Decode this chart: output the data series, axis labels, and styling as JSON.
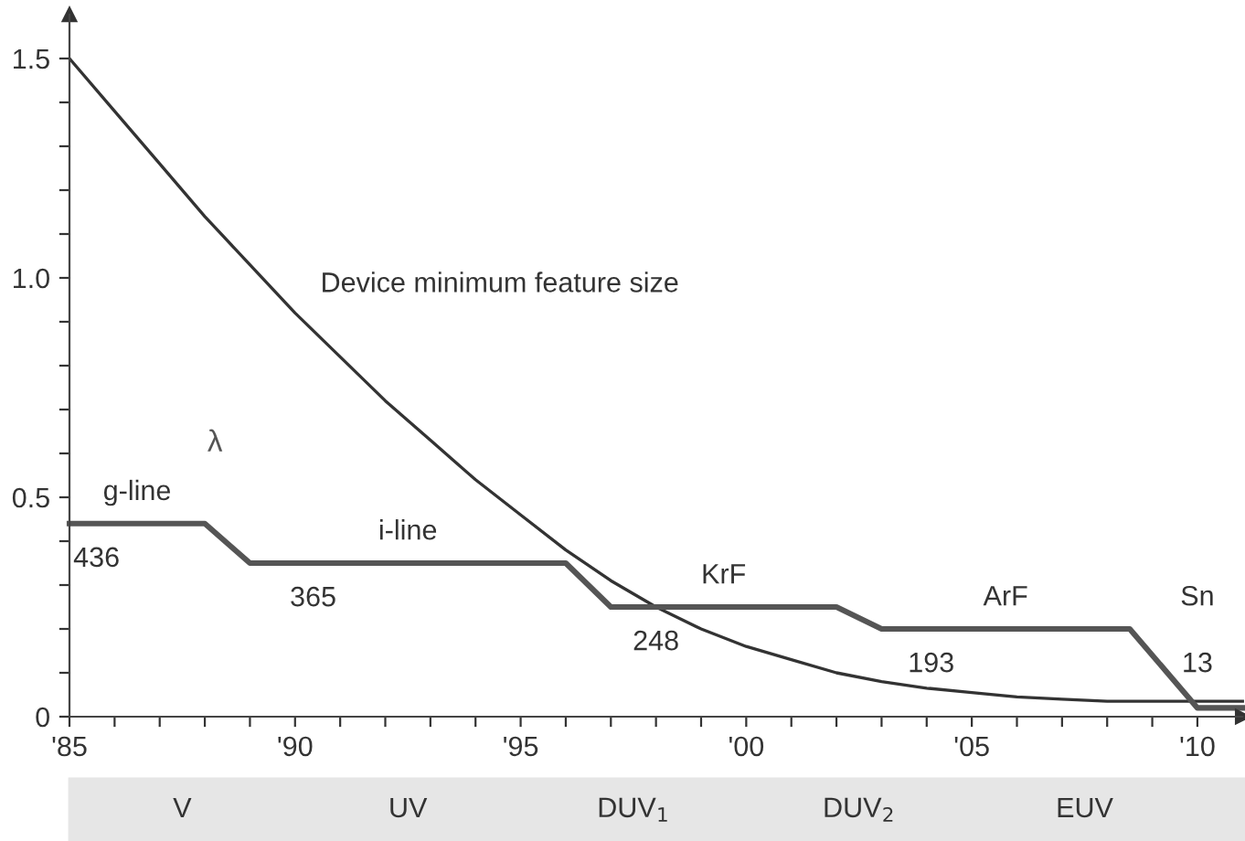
{
  "chart_data": {
    "type": "line",
    "series": [
      {
        "name": "Device minimum feature size",
        "color": "#333333",
        "x": [
          1985,
          1986,
          1987,
          1988,
          1989,
          1990,
          1991,
          1992,
          1993,
          1994,
          1995,
          1996,
          1997,
          1998,
          1999,
          2000,
          2001,
          2002,
          2003,
          2004,
          2005,
          2006,
          2007,
          2008,
          2009,
          2010,
          2011
        ],
        "values": [
          1.5,
          1.38,
          1.26,
          1.14,
          1.03,
          0.92,
          0.82,
          0.72,
          0.63,
          0.54,
          0.46,
          0.38,
          0.31,
          0.25,
          0.2,
          0.16,
          0.13,
          0.1,
          0.08,
          0.065,
          0.055,
          0.045,
          0.04,
          0.035,
          0.035,
          0.035,
          0.035
        ]
      },
      {
        "name": "λ",
        "color": "#555555",
        "x": [
          1985,
          1988,
          1989,
          1996,
          1997,
          2002,
          2003,
          2008.5,
          2010,
          2011
        ],
        "values": [
          0.44,
          0.44,
          0.35,
          0.35,
          0.25,
          0.25,
          0.2,
          0.2,
          0.02,
          0.02
        ]
      }
    ],
    "xlim": [
      1985,
      2011
    ],
    "ylim": [
      0,
      1.6
    ],
    "xticks": [
      {
        "value": 1985,
        "label": "'85"
      },
      {
        "value": 1986,
        "label": null
      },
      {
        "value": 1987,
        "label": null
      },
      {
        "value": 1988,
        "label": null
      },
      {
        "value": 1989,
        "label": null
      },
      {
        "value": 1990,
        "label": "'90"
      },
      {
        "value": 1991,
        "label": null
      },
      {
        "value": 1992,
        "label": null
      },
      {
        "value": 1993,
        "label": null
      },
      {
        "value": 1994,
        "label": null
      },
      {
        "value": 1995,
        "label": "'95"
      },
      {
        "value": 1996,
        "label": null
      },
      {
        "value": 1997,
        "label": null
      },
      {
        "value": 1998,
        "label": null
      },
      {
        "value": 1999,
        "label": null
      },
      {
        "value": 2000,
        "label": "'00"
      },
      {
        "value": 2001,
        "label": null
      },
      {
        "value": 2002,
        "label": null
      },
      {
        "value": 2003,
        "label": null
      },
      {
        "value": 2004,
        "label": null
      },
      {
        "value": 2005,
        "label": "'05"
      },
      {
        "value": 2006,
        "label": null
      },
      {
        "value": 2007,
        "label": null
      },
      {
        "value": 2008,
        "label": null
      },
      {
        "value": 2009,
        "label": null
      },
      {
        "value": 2010,
        "label": "'10"
      }
    ],
    "yticks": [
      0,
      {
        "value": 0.1,
        "label": null
      },
      {
        "value": 0.2,
        "label": null
      },
      {
        "value": 0.3,
        "label": null
      },
      {
        "value": 0.4,
        "label": null
      },
      0.5,
      {
        "value": 0.6,
        "label": null
      },
      {
        "value": 0.7,
        "label": null
      },
      {
        "value": 0.8,
        "label": null
      },
      {
        "value": 0.9,
        "label": null
      },
      {
        "value": 1.0,
        "label": "1.0"
      },
      {
        "value": 1.1,
        "label": null
      },
      {
        "value": 1.2,
        "label": null
      },
      {
        "value": 1.3,
        "label": null
      },
      {
        "value": 1.4,
        "label": null
      },
      1.5
    ],
    "grid": false,
    "legend": false,
    "marker": "none",
    "line_style": "solid",
    "annotations": [
      "g-line",
      "436",
      "i-line",
      "365",
      "KrF",
      "248",
      "ArF",
      "193",
      "Sn",
      "13",
      "V",
      "UV",
      "DUV$_{1}$",
      "DUV$_{2}$",
      "EUV"
    ]
  }
}
